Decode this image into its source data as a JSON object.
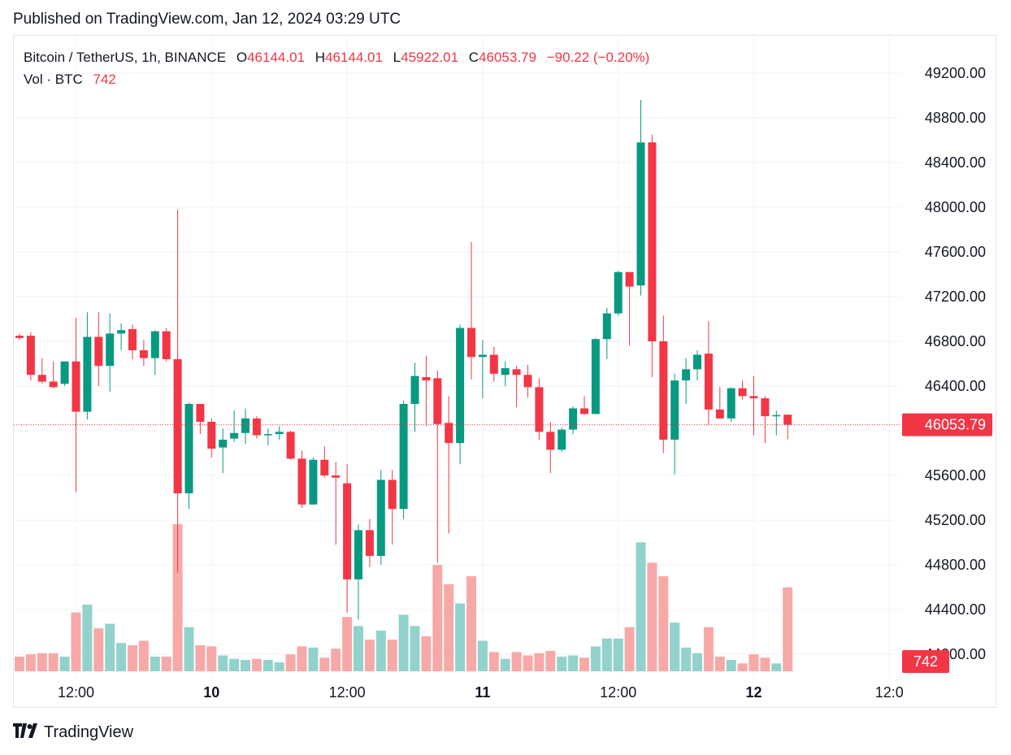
{
  "header": {
    "published": "Published on TradingView.com, Jan 12, 2024 03:29 UTC"
  },
  "legend": {
    "symbol": "Bitcoin / TetherUS, 1h, BINANCE",
    "o_label": "O",
    "o_value": "46144.01",
    "h_label": "H",
    "h_value": "46144.01",
    "l_label": "L",
    "l_value": "45922.01",
    "c_label": "C",
    "c_value": "46053.79",
    "change": "−90.22 (−0.20%)",
    "vol_label": "Vol · BTC",
    "vol_value": "742"
  },
  "footer": {
    "brand": "TradingView",
    "logo_icon": "tradingview-logo-icon"
  },
  "colors": {
    "up": "#089981",
    "down": "#f23645",
    "vol_up": "#92d2cc",
    "vol_down": "#f7a9a7",
    "grid": "#f0f3fa",
    "axis_text": "#131722"
  },
  "chart_data": {
    "type": "candlestick",
    "title": "Bitcoin / TetherUS, 1h, BINANCE",
    "interval": "1h",
    "ylim": [
      43900,
      49400
    ],
    "y_ticks": [
      "49200.00",
      "48800.00",
      "48400.00",
      "48000.00",
      "47600.00",
      "47200.00",
      "46800.00",
      "46400.00",
      "46000.00",
      "45600.00",
      "45200.00",
      "44800.00",
      "44400.00",
      "44000.00"
    ],
    "x_ticks": [
      {
        "label": "12:00",
        "bar": 5,
        "bold": false
      },
      {
        "label": "10",
        "bar": 17,
        "bold": true
      },
      {
        "label": "12:00",
        "bar": 29,
        "bold": false
      },
      {
        "label": "11",
        "bar": 41,
        "bold": true
      },
      {
        "label": "12:00",
        "bar": 53,
        "bold": false
      },
      {
        "label": "12",
        "bar": 65,
        "bold": true
      },
      {
        "label": "12:0",
        "bar": 77,
        "bold": false
      }
    ],
    "last_price": "46053.79",
    "last_price_value": 46053.79,
    "last_volume": "742",
    "volume_max": 1300,
    "candles": [
      {
        "o": 46850,
        "h": 46870,
        "l": 46810,
        "c": 46830,
        "v": 130
      },
      {
        "o": 46850,
        "h": 46880,
        "l": 46450,
        "c": 46500,
        "v": 150
      },
      {
        "o": 46500,
        "h": 46650,
        "l": 46420,
        "c": 46440,
        "v": 160
      },
      {
        "o": 46440,
        "h": 46620,
        "l": 46380,
        "c": 46390,
        "v": 160
      },
      {
        "o": 46420,
        "h": 46610,
        "l": 46400,
        "c": 46620,
        "v": 130
      },
      {
        "o": 46620,
        "h": 47010,
        "l": 45450,
        "c": 46170,
        "v": 520
      },
      {
        "o": 46170,
        "h": 47060,
        "l": 46100,
        "c": 46840,
        "v": 590
      },
      {
        "o": 46840,
        "h": 47060,
        "l": 46400,
        "c": 46580,
        "v": 380
      },
      {
        "o": 46580,
        "h": 47050,
        "l": 46350,
        "c": 46870,
        "v": 420
      },
      {
        "o": 46870,
        "h": 46960,
        "l": 46720,
        "c": 46900,
        "v": 250
      },
      {
        "o": 46910,
        "h": 46950,
        "l": 46640,
        "c": 46720,
        "v": 230
      },
      {
        "o": 46720,
        "h": 46810,
        "l": 46580,
        "c": 46650,
        "v": 270
      },
      {
        "o": 46650,
        "h": 46900,
        "l": 46500,
        "c": 46890,
        "v": 130
      },
      {
        "o": 46890,
        "h": 46920,
        "l": 46620,
        "c": 46640,
        "v": 130
      },
      {
        "o": 46640,
        "h": 47980,
        "l": 44730,
        "c": 45440,
        "v": 1300
      },
      {
        "o": 45440,
        "h": 46250,
        "l": 45300,
        "c": 46240,
        "v": 390
      },
      {
        "o": 46240,
        "h": 46230,
        "l": 45970,
        "c": 46080,
        "v": 230
      },
      {
        "o": 46080,
        "h": 46110,
        "l": 45760,
        "c": 45840,
        "v": 220
      },
      {
        "o": 45850,
        "h": 46020,
        "l": 45620,
        "c": 45920,
        "v": 140
      },
      {
        "o": 45930,
        "h": 46180,
        "l": 45900,
        "c": 45980,
        "v": 110
      },
      {
        "o": 45980,
        "h": 46200,
        "l": 45880,
        "c": 46110,
        "v": 100
      },
      {
        "o": 46110,
        "h": 46130,
        "l": 45930,
        "c": 45960,
        "v": 110
      },
      {
        "o": 45960,
        "h": 46020,
        "l": 45870,
        "c": 45970,
        "v": 100
      },
      {
        "o": 45970,
        "h": 46040,
        "l": 45920,
        "c": 45990,
        "v": 80
      },
      {
        "o": 45990,
        "h": 46000,
        "l": 45740,
        "c": 45750,
        "v": 150
      },
      {
        "o": 45750,
        "h": 45820,
        "l": 45310,
        "c": 45340,
        "v": 220
      },
      {
        "o": 45340,
        "h": 45760,
        "l": 45340,
        "c": 45740,
        "v": 210
      },
      {
        "o": 45740,
        "h": 45860,
        "l": 45580,
        "c": 45600,
        "v": 120
      },
      {
        "o": 45600,
        "h": 45720,
        "l": 44980,
        "c": 45580,
        "v": 200
      },
      {
        "o": 45530,
        "h": 45700,
        "l": 44370,
        "c": 44670,
        "v": 480
      },
      {
        "o": 44670,
        "h": 45160,
        "l": 44310,
        "c": 45110,
        "v": 400
      },
      {
        "o": 45110,
        "h": 45210,
        "l": 44780,
        "c": 44880,
        "v": 280
      },
      {
        "o": 44880,
        "h": 45650,
        "l": 44800,
        "c": 45560,
        "v": 360
      },
      {
        "o": 45560,
        "h": 45650,
        "l": 44980,
        "c": 45300,
        "v": 280
      },
      {
        "o": 45300,
        "h": 46270,
        "l": 45210,
        "c": 46240,
        "v": 500
      },
      {
        "o": 46240,
        "h": 46610,
        "l": 45990,
        "c": 46490,
        "v": 400
      },
      {
        "o": 46480,
        "h": 46670,
        "l": 46040,
        "c": 46450,
        "v": 310
      },
      {
        "o": 46470,
        "h": 46540,
        "l": 44820,
        "c": 46060,
        "v": 940
      },
      {
        "o": 46070,
        "h": 46310,
        "l": 45080,
        "c": 45890,
        "v": 770
      },
      {
        "o": 45890,
        "h": 46950,
        "l": 45700,
        "c": 46920,
        "v": 600
      },
      {
        "o": 46920,
        "h": 47690,
        "l": 46460,
        "c": 46660,
        "v": 840
      },
      {
        "o": 46660,
        "h": 46810,
        "l": 46290,
        "c": 46680,
        "v": 270
      },
      {
        "o": 46680,
        "h": 46750,
        "l": 46440,
        "c": 46510,
        "v": 170
      },
      {
        "o": 46500,
        "h": 46620,
        "l": 46400,
        "c": 46560,
        "v": 110
      },
      {
        "o": 46550,
        "h": 46580,
        "l": 46210,
        "c": 46500,
        "v": 170
      },
      {
        "o": 46500,
        "h": 46590,
        "l": 46300,
        "c": 46390,
        "v": 140
      },
      {
        "o": 46390,
        "h": 46470,
        "l": 45920,
        "c": 45990,
        "v": 160
      },
      {
        "o": 45990,
        "h": 46080,
        "l": 45620,
        "c": 45830,
        "v": 180
      },
      {
        "o": 45830,
        "h": 46030,
        "l": 45810,
        "c": 46010,
        "v": 130
      },
      {
        "o": 46010,
        "h": 46220,
        "l": 45970,
        "c": 46200,
        "v": 140
      },
      {
        "o": 46200,
        "h": 46310,
        "l": 46140,
        "c": 46150,
        "v": 120
      },
      {
        "o": 46150,
        "h": 46830,
        "l": 46150,
        "c": 46820,
        "v": 220
      },
      {
        "o": 46820,
        "h": 47100,
        "l": 46640,
        "c": 47050,
        "v": 290
      },
      {
        "o": 47050,
        "h": 47430,
        "l": 47030,
        "c": 47420,
        "v": 290
      },
      {
        "o": 47420,
        "h": 47410,
        "l": 46760,
        "c": 47290,
        "v": 390
      },
      {
        "o": 47300,
        "h": 48960,
        "l": 47210,
        "c": 48580,
        "v": 1140
      },
      {
        "o": 48580,
        "h": 48650,
        "l": 46480,
        "c": 46800,
        "v": 960
      },
      {
        "o": 46800,
        "h": 47030,
        "l": 45800,
        "c": 45920,
        "v": 840
      },
      {
        "o": 45920,
        "h": 46510,
        "l": 45610,
        "c": 46450,
        "v": 430
      },
      {
        "o": 46450,
        "h": 46650,
        "l": 46240,
        "c": 46550,
        "v": 210
      },
      {
        "o": 46550,
        "h": 46720,
        "l": 46450,
        "c": 46680,
        "v": 160
      },
      {
        "o": 46690,
        "h": 46980,
        "l": 46050,
        "c": 46190,
        "v": 390
      },
      {
        "o": 46190,
        "h": 46390,
        "l": 46110,
        "c": 46110,
        "v": 130
      },
      {
        "o": 46110,
        "h": 46390,
        "l": 46080,
        "c": 46380,
        "v": 100
      },
      {
        "o": 46380,
        "h": 46450,
        "l": 46280,
        "c": 46310,
        "v": 70
      },
      {
        "o": 46310,
        "h": 46490,
        "l": 45960,
        "c": 46290,
        "v": 150
      },
      {
        "o": 46290,
        "h": 46310,
        "l": 45890,
        "c": 46130,
        "v": 120
      },
      {
        "o": 46130,
        "h": 46180,
        "l": 45960,
        "c": 46140,
        "v": 70
      },
      {
        "o": 46144.01,
        "h": 46144.01,
        "l": 45922.01,
        "c": 46053.79,
        "v": 742
      }
    ]
  }
}
